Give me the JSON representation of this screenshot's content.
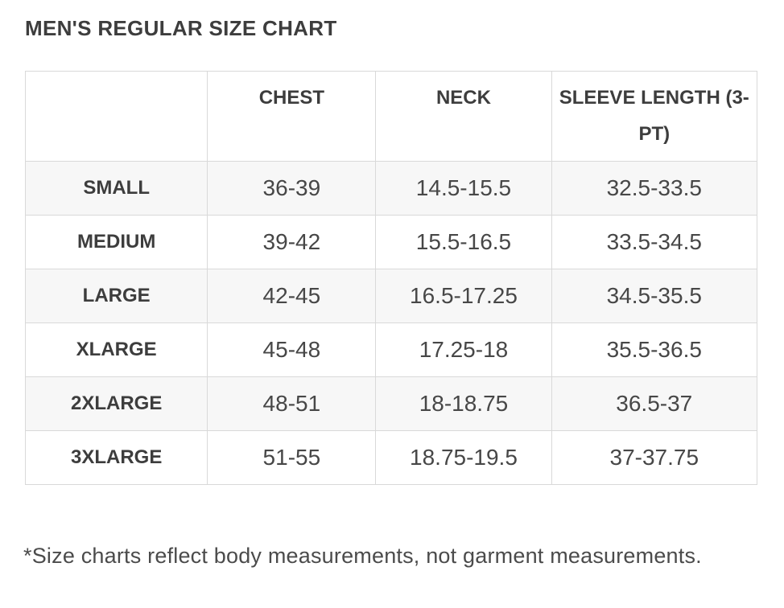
{
  "page": {
    "title": "MEN'S REGULAR SIZE CHART",
    "footnote": "*Size charts reflect body measurements, not garment measurements."
  },
  "chart_data": {
    "type": "table",
    "title": "MEN'S REGULAR SIZE CHART",
    "columns": [
      "",
      "CHEST",
      "NECK",
      "SLEEVE LENGTH (3-PT)"
    ],
    "rows": [
      {
        "label": "SMALL",
        "chest": "36-39",
        "neck": "14.5-15.5",
        "sleeve": "32.5-33.5"
      },
      {
        "label": "MEDIUM",
        "chest": "39-42",
        "neck": "15.5-16.5",
        "sleeve": "33.5-34.5"
      },
      {
        "label": "LARGE",
        "chest": "42-45",
        "neck": "16.5-17.25",
        "sleeve": "34.5-35.5"
      },
      {
        "label": "XLARGE",
        "chest": "45-48",
        "neck": "17.25-18",
        "sleeve": "35.5-36.5"
      },
      {
        "label": "2XLARGE",
        "chest": "48-51",
        "neck": "18-18.75",
        "sleeve": "36.5-37"
      },
      {
        "label": "3XLARGE",
        "chest": "51-55",
        "neck": "18.75-19.5",
        "sleeve": "37-37.75"
      }
    ],
    "layout": {
      "row_alternate_bg": "#f7f7f7",
      "border_color": "#d9d9d9",
      "text_color": "#3d3d3d"
    }
  }
}
